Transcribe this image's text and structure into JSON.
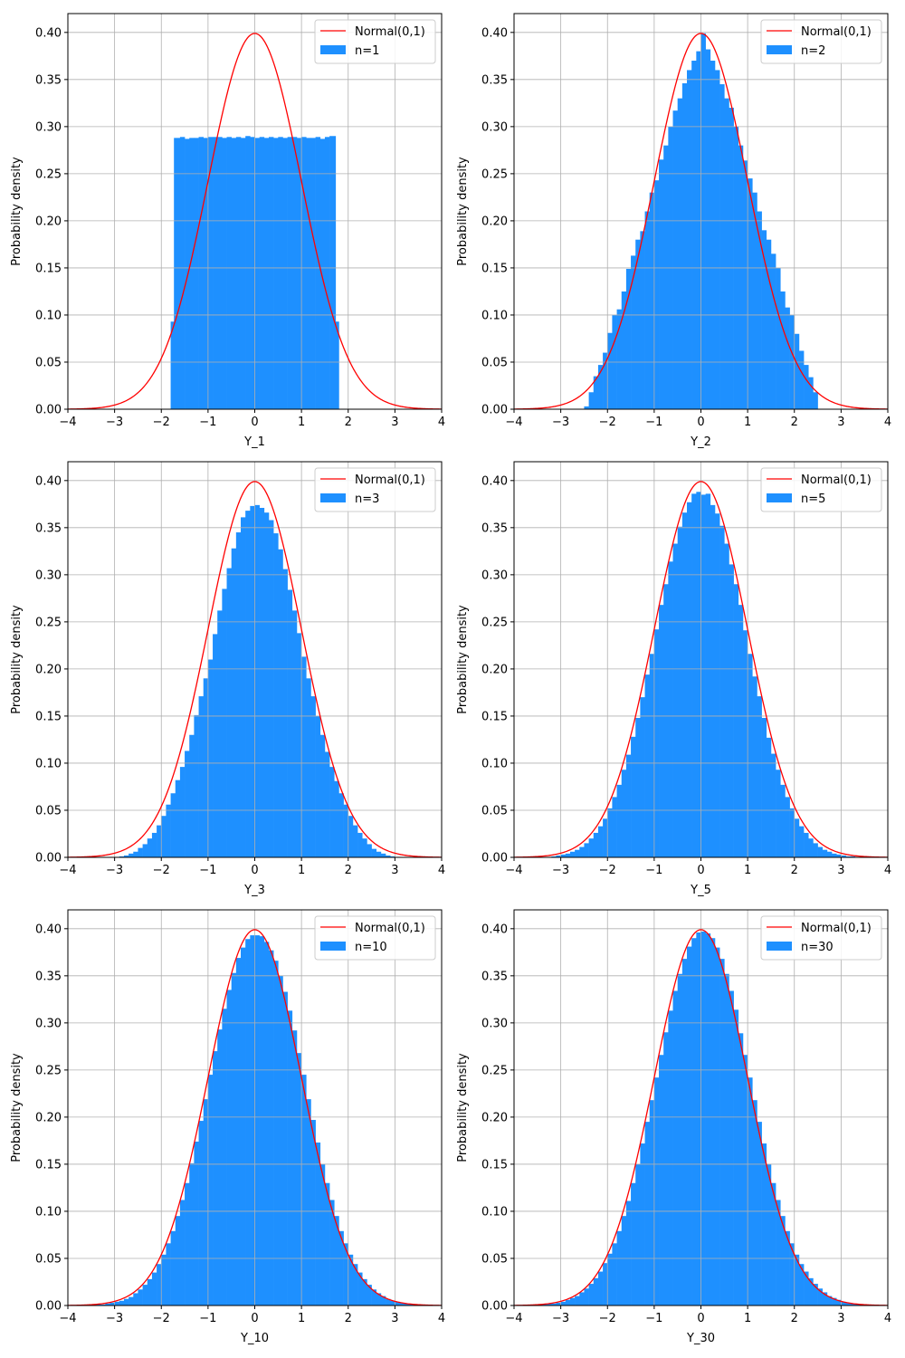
{
  "chart_data": [
    {
      "type": "bar",
      "panel": "n=1",
      "xlabel": "Y_1",
      "ylabel": "Probability density",
      "xlim": [
        -4,
        4
      ],
      "ylim": [
        0,
        0.42
      ],
      "grid": true,
      "legend": {
        "placement": "top-right",
        "entries": [
          "Normal(0,1)",
          "n=1"
        ]
      },
      "xticks": [
        "−4",
        "−3",
        "−2",
        "−1",
        "0",
        "1",
        "2",
        "3",
        "4"
      ],
      "yticks": [
        "0.00",
        "0.05",
        "0.10",
        "0.15",
        "0.20",
        "0.25",
        "0.30",
        "0.35",
        "0.40"
      ],
      "series": [
        {
          "name": "Normal(0,1)",
          "kind": "line",
          "color": "#ff0000",
          "function": "standard normal pdf"
        },
        {
          "name": "n=1",
          "kind": "histogram",
          "color": "#1e90ff",
          "bin_edges": [
            -1.8,
            -1.73,
            -1.6,
            -1.5,
            -1.4,
            -1.3,
            -1.2,
            -1.1,
            -1.0,
            -0.9,
            -0.8,
            -0.7,
            -0.6,
            -0.5,
            -0.4,
            -0.3,
            -0.2,
            -0.1,
            0.0,
            0.1,
            0.2,
            0.3,
            0.4,
            0.5,
            0.6,
            0.7,
            0.8,
            0.9,
            1.0,
            1.1,
            1.2,
            1.3,
            1.4,
            1.5,
            1.6,
            1.73,
            1.8
          ],
          "values": [
            0.093,
            0.288,
            0.289,
            0.287,
            0.288,
            0.288,
            0.289,
            0.288,
            0.289,
            0.289,
            0.289,
            0.288,
            0.289,
            0.288,
            0.289,
            0.288,
            0.29,
            0.289,
            0.288,
            0.289,
            0.288,
            0.289,
            0.288,
            0.289,
            0.288,
            0.289,
            0.289,
            0.288,
            0.289,
            0.288,
            0.288,
            0.289,
            0.287,
            0.289,
            0.29,
            0.093
          ]
        }
      ]
    },
    {
      "type": "bar",
      "panel": "n=2",
      "xlabel": "Y_2",
      "ylabel": "Probability density",
      "xlim": [
        -4,
        4
      ],
      "ylim": [
        0,
        0.42
      ],
      "grid": true,
      "legend": {
        "placement": "top-right",
        "entries": [
          "Normal(0,1)",
          "n=2"
        ]
      },
      "xticks": [
        "−4",
        "−3",
        "−2",
        "−1",
        "0",
        "1",
        "2",
        "3",
        "4"
      ],
      "yticks": [
        "0.00",
        "0.05",
        "0.10",
        "0.15",
        "0.20",
        "0.25",
        "0.30",
        "0.35",
        "0.40"
      ],
      "series": [
        {
          "name": "Normal(0,1)",
          "kind": "line",
          "color": "#ff0000",
          "function": "standard normal pdf"
        },
        {
          "name": "n=2",
          "kind": "histogram",
          "color": "#1e90ff",
          "bin_edges": [
            -2.5,
            -2.4,
            -2.3,
            -2.2,
            -2.1,
            -2.0,
            -1.9,
            -1.8,
            -1.7,
            -1.6,
            -1.5,
            -1.4,
            -1.3,
            -1.2,
            -1.1,
            -1.0,
            -0.9,
            -0.8,
            -0.7,
            -0.6,
            -0.5,
            -0.4,
            -0.3,
            -0.2,
            -0.1,
            0.0,
            0.1,
            0.2,
            0.3,
            0.4,
            0.5,
            0.6,
            0.7,
            0.8,
            0.9,
            1.0,
            1.1,
            1.2,
            1.3,
            1.4,
            1.5,
            1.6,
            1.7,
            1.8,
            1.9,
            2.0,
            2.1,
            2.2,
            2.3,
            2.4,
            2.5
          ],
          "values": [
            0.003,
            0.018,
            0.035,
            0.047,
            0.06,
            0.081,
            0.1,
            0.106,
            0.125,
            0.149,
            0.163,
            0.18,
            0.189,
            0.21,
            0.23,
            0.243,
            0.265,
            0.28,
            0.3,
            0.317,
            0.33,
            0.346,
            0.36,
            0.37,
            0.38,
            0.399,
            0.382,
            0.37,
            0.36,
            0.345,
            0.33,
            0.32,
            0.3,
            0.28,
            0.264,
            0.245,
            0.23,
            0.21,
            0.19,
            0.18,
            0.165,
            0.15,
            0.125,
            0.108,
            0.1,
            0.08,
            0.062,
            0.047,
            0.034,
            0.018
          ]
        }
      ]
    },
    {
      "type": "bar",
      "panel": "n=3",
      "xlabel": "Y_3",
      "ylabel": "Probability density",
      "xlim": [
        -4,
        4
      ],
      "ylim": [
        0,
        0.42
      ],
      "grid": true,
      "legend": {
        "placement": "top-right",
        "entries": [
          "Normal(0,1)",
          "n=3"
        ]
      },
      "xticks": [
        "−4",
        "−3",
        "−2",
        "−1",
        "0",
        "1",
        "2",
        "3",
        "4"
      ],
      "yticks": [
        "0.00",
        "0.05",
        "0.10",
        "0.15",
        "0.20",
        "0.25",
        "0.30",
        "0.35",
        "0.40"
      ],
      "series": [
        {
          "name": "Normal(0,1)",
          "kind": "line",
          "color": "#ff0000",
          "function": "standard normal pdf"
        },
        {
          "name": "n=3",
          "kind": "histogram",
          "color": "#1e90ff",
          "bin_edges": [
            -3.0,
            -2.9,
            -2.8,
            -2.7,
            -2.6,
            -2.5,
            -2.4,
            -2.3,
            -2.2,
            -2.1,
            -2.0,
            -1.9,
            -1.8,
            -1.7,
            -1.6,
            -1.5,
            -1.4,
            -1.3,
            -1.2,
            -1.1,
            -1.0,
            -0.9,
            -0.8,
            -0.7,
            -0.6,
            -0.5,
            -0.4,
            -0.3,
            -0.2,
            -0.1,
            0.0,
            0.1,
            0.2,
            0.3,
            0.4,
            0.5,
            0.6,
            0.7,
            0.8,
            0.9,
            1.0,
            1.1,
            1.2,
            1.3,
            1.4,
            1.5,
            1.6,
            1.7,
            1.8,
            1.9,
            2.0,
            2.1,
            2.2,
            2.3,
            2.4,
            2.5,
            2.6,
            2.7,
            2.8,
            2.9,
            3.0
          ],
          "values": [
            0.0,
            0.001,
            0.002,
            0.004,
            0.006,
            0.01,
            0.014,
            0.02,
            0.026,
            0.034,
            0.044,
            0.056,
            0.068,
            0.082,
            0.096,
            0.113,
            0.13,
            0.151,
            0.171,
            0.19,
            0.21,
            0.237,
            0.262,
            0.285,
            0.307,
            0.328,
            0.345,
            0.361,
            0.368,
            0.373,
            0.374,
            0.371,
            0.366,
            0.358,
            0.344,
            0.327,
            0.306,
            0.284,
            0.262,
            0.238,
            0.213,
            0.19,
            0.171,
            0.15,
            0.13,
            0.112,
            0.096,
            0.081,
            0.068,
            0.056,
            0.044,
            0.034,
            0.026,
            0.02,
            0.014,
            0.009,
            0.006,
            0.004,
            0.002,
            0.001
          ]
        }
      ]
    },
    {
      "type": "bar",
      "panel": "n=5",
      "xlabel": "Y_5",
      "ylabel": "Probability density",
      "xlim": [
        -4,
        4
      ],
      "ylim": [
        0,
        0.42
      ],
      "grid": true,
      "legend": {
        "placement": "top-right",
        "entries": [
          "Normal(0,1)",
          "n=5"
        ]
      },
      "xticks": [
        "−4",
        "−3",
        "−2",
        "−1",
        "0",
        "1",
        "2",
        "3",
        "4"
      ],
      "yticks": [
        "0.00",
        "0.05",
        "0.10",
        "0.15",
        "0.20",
        "0.25",
        "0.30",
        "0.35",
        "0.40"
      ],
      "series": [
        {
          "name": "Normal(0,1)",
          "kind": "line",
          "color": "#ff0000",
          "function": "standard normal pdf"
        },
        {
          "name": "n=5",
          "kind": "histogram",
          "color": "#1e90ff",
          "bin_edges": [
            -3.5,
            -3.4,
            -3.3,
            -3.2,
            -3.1,
            -3.0,
            -2.9,
            -2.8,
            -2.7,
            -2.6,
            -2.5,
            -2.4,
            -2.3,
            -2.2,
            -2.1,
            -2.0,
            -1.9,
            -1.8,
            -1.7,
            -1.6,
            -1.5,
            -1.4,
            -1.3,
            -1.2,
            -1.1,
            -1.0,
            -0.9,
            -0.8,
            -0.7,
            -0.6,
            -0.5,
            -0.4,
            -0.3,
            -0.2,
            -0.1,
            0.0,
            0.1,
            0.2,
            0.3,
            0.4,
            0.5,
            0.6,
            0.7,
            0.8,
            0.9,
            1.0,
            1.1,
            1.2,
            1.3,
            1.4,
            1.5,
            1.6,
            1.7,
            1.8,
            1.9,
            2.0,
            2.1,
            2.2,
            2.3,
            2.4,
            2.5,
            2.6,
            2.7,
            2.8,
            2.9,
            3.0,
            3.1,
            3.2,
            3.3,
            3.4,
            3.5
          ],
          "values": [
            0.0,
            0.0,
            0.0,
            0.001,
            0.002,
            0.003,
            0.004,
            0.006,
            0.008,
            0.011,
            0.015,
            0.02,
            0.026,
            0.033,
            0.041,
            0.052,
            0.064,
            0.077,
            0.093,
            0.109,
            0.128,
            0.148,
            0.17,
            0.194,
            0.216,
            0.242,
            0.268,
            0.29,
            0.314,
            0.333,
            0.351,
            0.366,
            0.377,
            0.386,
            0.388,
            0.385,
            0.386,
            0.374,
            0.365,
            0.352,
            0.333,
            0.311,
            0.29,
            0.268,
            0.241,
            0.216,
            0.192,
            0.171,
            0.148,
            0.127,
            0.11,
            0.093,
            0.077,
            0.064,
            0.052,
            0.041,
            0.033,
            0.026,
            0.02,
            0.015,
            0.011,
            0.008,
            0.006,
            0.004,
            0.003,
            0.002,
            0.001,
            0.001,
            0.0,
            0.0
          ]
        }
      ]
    },
    {
      "type": "bar",
      "panel": "n=10",
      "xlabel": "Y_10",
      "ylabel": "Probability density",
      "xlim": [
        -4,
        4
      ],
      "ylim": [
        0,
        0.42
      ],
      "grid": true,
      "legend": {
        "placement": "top-right",
        "entries": [
          "Normal(0,1)",
          "n=10"
        ]
      },
      "xticks": [
        "−4",
        "−3",
        "−2",
        "−1",
        "0",
        "1",
        "2",
        "3",
        "4"
      ],
      "yticks": [
        "0.00",
        "0.05",
        "0.10",
        "0.15",
        "0.20",
        "0.25",
        "0.30",
        "0.35",
        "0.40"
      ],
      "series": [
        {
          "name": "Normal(0,1)",
          "kind": "line",
          "color": "#ff0000",
          "function": "standard normal pdf"
        },
        {
          "name": "n=10",
          "kind": "histogram",
          "color": "#1e90ff",
          "bin_edges": [
            -3.5,
            -3.4,
            -3.3,
            -3.2,
            -3.1,
            -3.0,
            -2.9,
            -2.8,
            -2.7,
            -2.6,
            -2.5,
            -2.4,
            -2.3,
            -2.2,
            -2.1,
            -2.0,
            -1.9,
            -1.8,
            -1.7,
            -1.6,
            -1.5,
            -1.4,
            -1.3,
            -1.2,
            -1.1,
            -1.0,
            -0.9,
            -0.8,
            -0.7,
            -0.6,
            -0.5,
            -0.4,
            -0.3,
            -0.2,
            -0.1,
            0.0,
            0.1,
            0.2,
            0.3,
            0.4,
            0.5,
            0.6,
            0.7,
            0.8,
            0.9,
            1.0,
            1.1,
            1.2,
            1.3,
            1.4,
            1.5,
            1.6,
            1.7,
            1.8,
            1.9,
            2.0,
            2.1,
            2.2,
            2.3,
            2.4,
            2.5,
            2.6,
            2.7,
            2.8,
            2.9,
            3.0,
            3.1,
            3.2,
            3.3,
            3.4,
            3.5
          ],
          "values": [
            0.001,
            0.001,
            0.001,
            0.002,
            0.003,
            0.004,
            0.005,
            0.007,
            0.009,
            0.013,
            0.017,
            0.022,
            0.028,
            0.035,
            0.044,
            0.054,
            0.066,
            0.079,
            0.095,
            0.112,
            0.13,
            0.151,
            0.174,
            0.196,
            0.219,
            0.245,
            0.27,
            0.293,
            0.315,
            0.335,
            0.353,
            0.369,
            0.38,
            0.389,
            0.393,
            0.393,
            0.392,
            0.386,
            0.377,
            0.366,
            0.35,
            0.333,
            0.313,
            0.292,
            0.268,
            0.245,
            0.219,
            0.197,
            0.173,
            0.15,
            0.13,
            0.112,
            0.095,
            0.079,
            0.066,
            0.054,
            0.044,
            0.035,
            0.028,
            0.022,
            0.017,
            0.013,
            0.01,
            0.007,
            0.005,
            0.004,
            0.003,
            0.002,
            0.001,
            0.001
          ]
        }
      ]
    },
    {
      "type": "bar",
      "panel": "n=30",
      "xlabel": "Y_30",
      "ylabel": "Probability density",
      "xlim": [
        -4,
        4
      ],
      "ylim": [
        0,
        0.42
      ],
      "grid": true,
      "legend": {
        "placement": "top-right",
        "entries": [
          "Normal(0,1)",
          "n=30"
        ]
      },
      "xticks": [
        "−4",
        "−3",
        "−2",
        "−1",
        "0",
        "1",
        "2",
        "3",
        "4"
      ],
      "yticks": [
        "0.00",
        "0.05",
        "0.10",
        "0.15",
        "0.20",
        "0.25",
        "0.30",
        "0.35",
        "0.40"
      ],
      "series": [
        {
          "name": "Normal(0,1)",
          "kind": "line",
          "color": "#ff0000",
          "function": "standard normal pdf"
        },
        {
          "name": "n=30",
          "kind": "histogram",
          "color": "#1e90ff",
          "bin_edges": [
            -3.5,
            -3.4,
            -3.3,
            -3.2,
            -3.1,
            -3.0,
            -2.9,
            -2.8,
            -2.7,
            -2.6,
            -2.5,
            -2.4,
            -2.3,
            -2.2,
            -2.1,
            -2.0,
            -1.9,
            -1.8,
            -1.7,
            -1.6,
            -1.5,
            -1.4,
            -1.3,
            -1.2,
            -1.1,
            -1.0,
            -0.9,
            -0.8,
            -0.7,
            -0.6,
            -0.5,
            -0.4,
            -0.3,
            -0.2,
            -0.1,
            0.0,
            0.1,
            0.2,
            0.3,
            0.4,
            0.5,
            0.6,
            0.7,
            0.8,
            0.9,
            1.0,
            1.1,
            1.2,
            1.3,
            1.4,
            1.5,
            1.6,
            1.7,
            1.8,
            1.9,
            2.0,
            2.1,
            2.2,
            2.3,
            2.4,
            2.5,
            2.6,
            2.7,
            2.8,
            2.9,
            3.0,
            3.1,
            3.2,
            3.3,
            3.4,
            3.5
          ],
          "values": [
            0.001,
            0.001,
            0.002,
            0.002,
            0.003,
            0.004,
            0.006,
            0.008,
            0.01,
            0.014,
            0.018,
            0.023,
            0.029,
            0.036,
            0.045,
            0.055,
            0.066,
            0.079,
            0.095,
            0.111,
            0.13,
            0.15,
            0.172,
            0.195,
            0.218,
            0.242,
            0.266,
            0.29,
            0.313,
            0.334,
            0.352,
            0.368,
            0.381,
            0.39,
            0.396,
            0.397,
            0.395,
            0.39,
            0.38,
            0.368,
            0.352,
            0.334,
            0.314,
            0.289,
            0.266,
            0.242,
            0.218,
            0.195,
            0.172,
            0.15,
            0.13,
            0.112,
            0.095,
            0.079,
            0.066,
            0.054,
            0.044,
            0.036,
            0.029,
            0.023,
            0.018,
            0.014,
            0.01,
            0.008,
            0.006,
            0.004,
            0.003,
            0.002,
            0.001,
            0.001
          ]
        }
      ]
    }
  ]
}
